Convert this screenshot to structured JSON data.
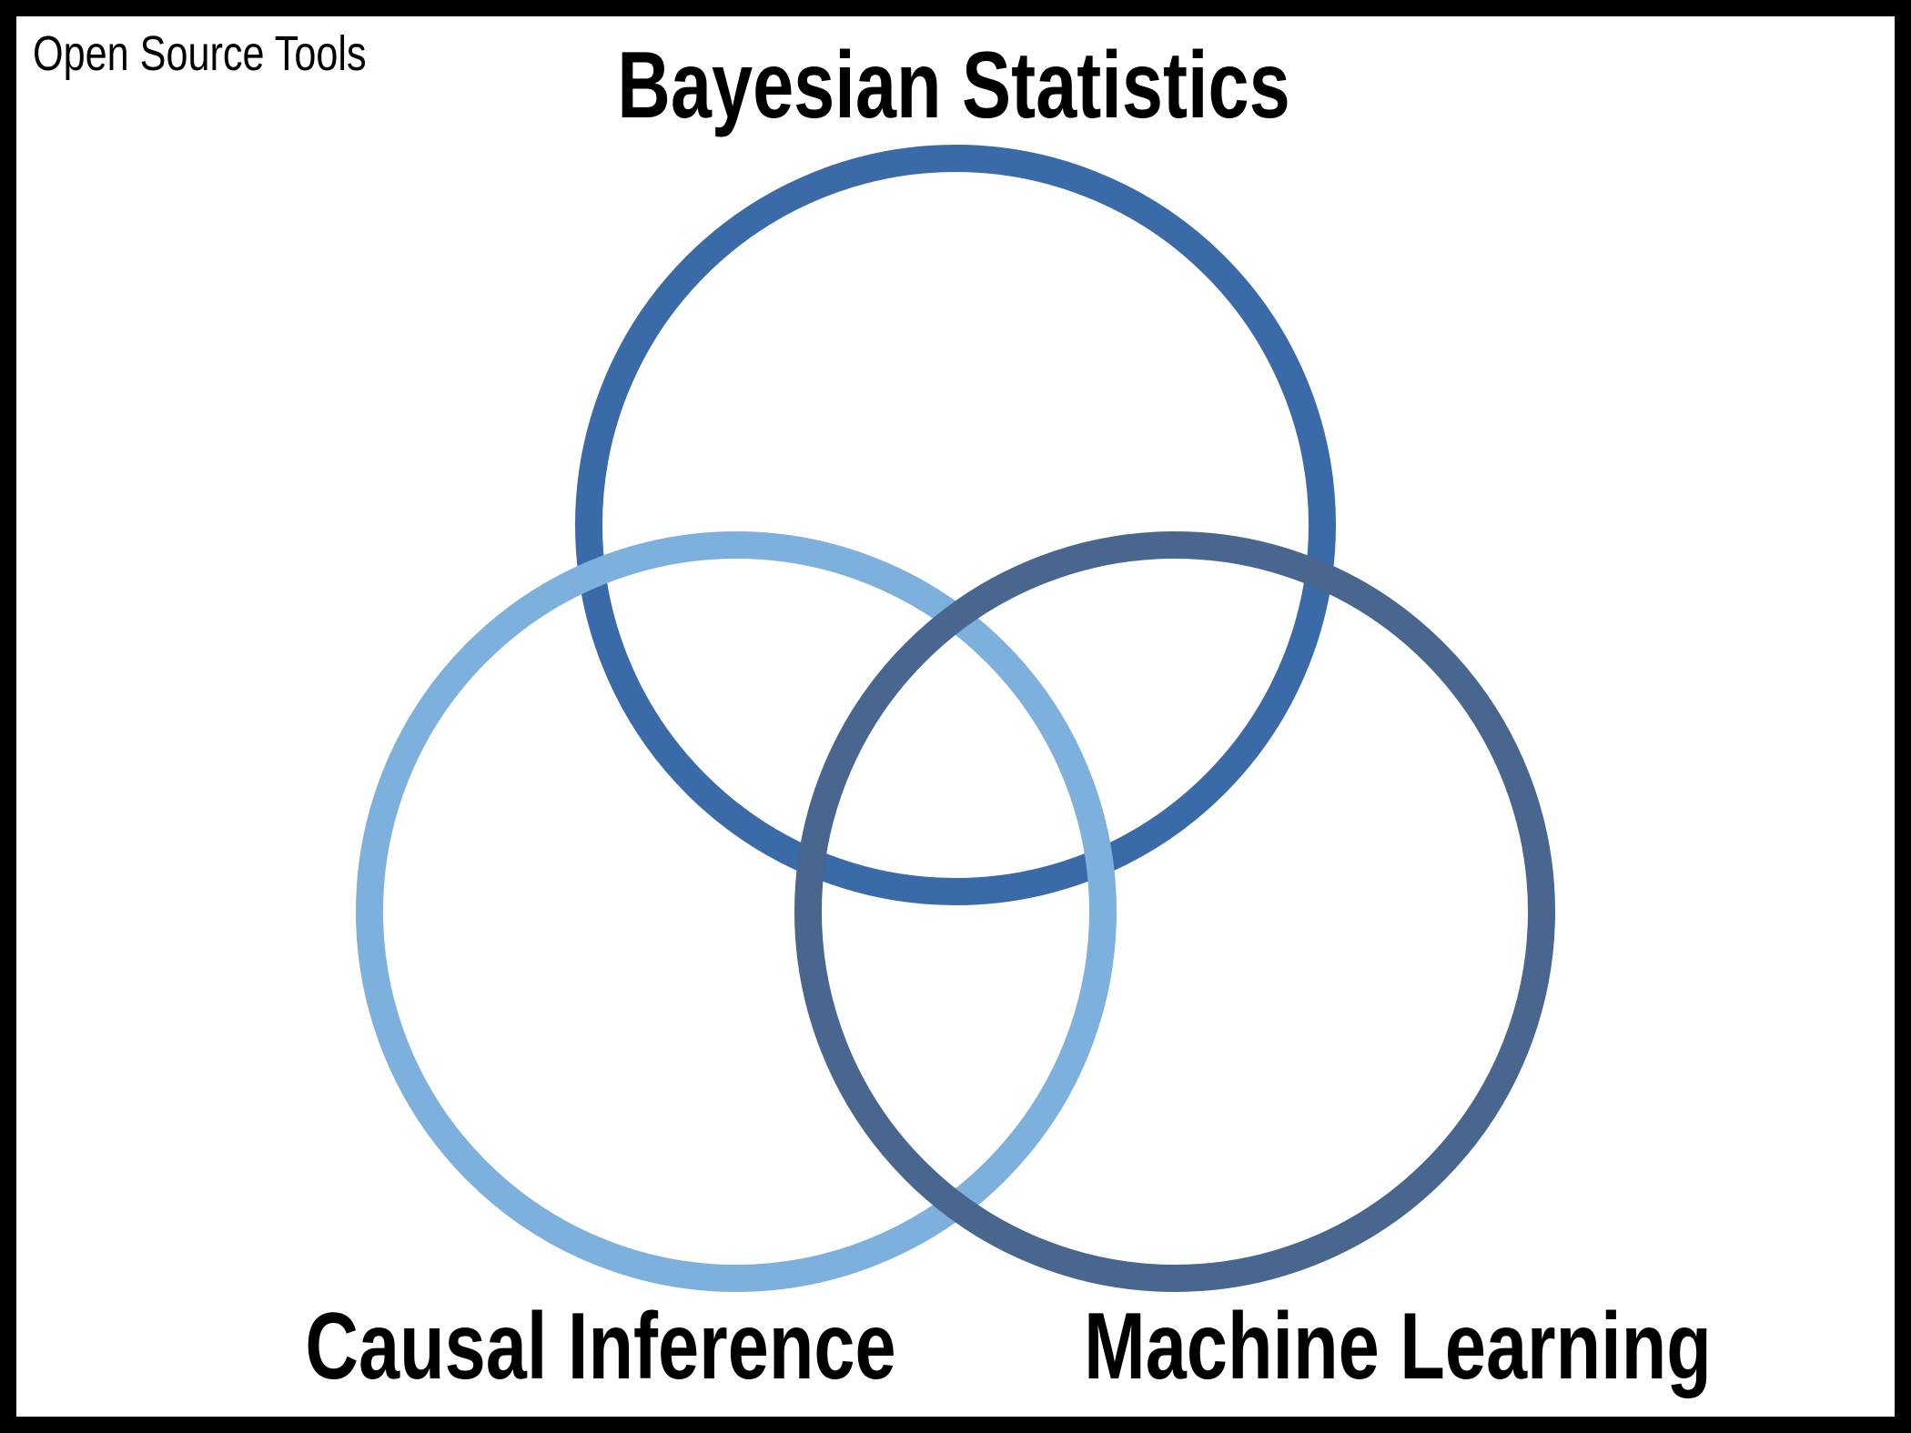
{
  "corner_title": "Open Source Tools",
  "sets": [
    {
      "id": "top",
      "label": "Bayesian Statistics",
      "color": "#3A6AA7"
    },
    {
      "id": "left",
      "label": "Causal Inference",
      "color": "#7EB0DE"
    },
    {
      "id": "right",
      "label": "Machine Learning",
      "color": "#49668F"
    }
  ],
  "colors": {
    "frame": "#000000",
    "background": "#ffffff",
    "text": "#000000"
  }
}
